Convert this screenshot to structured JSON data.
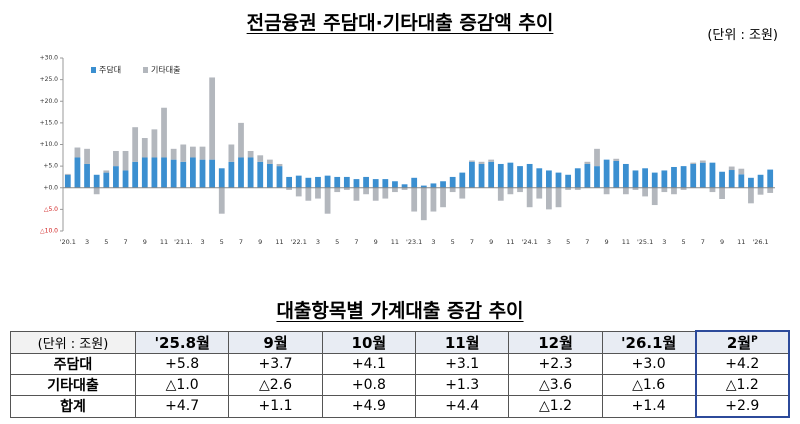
{
  "chart_data": {
    "type": "bar",
    "stacked": true,
    "title": "전금융권 주담대·기타대출 증감액 추이",
    "unit": "(단위 : 조원)",
    "categories": [
      "'20.1",
      null,
      "3",
      null,
      "5",
      null,
      "7",
      null,
      "9",
      null,
      "11",
      null,
      "'21.1.",
      null,
      "3",
      null,
      "5",
      null,
      "7",
      null,
      "9",
      null,
      "11",
      null,
      "'22.1",
      null,
      "3",
      null,
      "5",
      null,
      "7",
      null,
      "9",
      null,
      "11",
      null,
      "'23.1",
      null,
      "3",
      null,
      "5",
      null,
      "7",
      null,
      "9",
      null,
      "11",
      null,
      "'24.1",
      null,
      "3",
      null,
      "5",
      null,
      "7",
      null,
      "9",
      null,
      "11",
      null,
      "'25.1",
      null,
      "3",
      null,
      "5",
      null,
      "7",
      null,
      "9",
      null,
      "11",
      null,
      "'26.1",
      null
    ],
    "series": [
      {
        "name": "주담대",
        "color": "#3b8fd0",
        "values": [
          3.0,
          7.0,
          5.5,
          3.0,
          3.5,
          5.0,
          4.0,
          6.0,
          7.0,
          7.0,
          7.0,
          6.5,
          6.0,
          7.0,
          6.5,
          6.5,
          4.5,
          6.0,
          7.0,
          7.0,
          6.0,
          5.5,
          5.0,
          2.5,
          2.8,
          2.3,
          2.5,
          2.8,
          2.5,
          2.5,
          2.0,
          2.5,
          2.0,
          2.0,
          1.5,
          0.8,
          2.3,
          0.5,
          1.0,
          1.5,
          2.5,
          3.5,
          6.0,
          5.5,
          6.0,
          5.5,
          5.8,
          5.0,
          5.5,
          4.5,
          4.0,
          3.5,
          3.0,
          4.5,
          5.5,
          5.0,
          6.5,
          6.2,
          5.5,
          4.0,
          4.5,
          3.5,
          4.0,
          4.8,
          5.0,
          5.5,
          5.8,
          5.8,
          3.7,
          4.1,
          3.1,
          2.3,
          3.0,
          4.2
        ]
      },
      {
        "name": "기타대출",
        "color": "#b3b7bd",
        "values": [
          0.2,
          2.3,
          3.5,
          -1.5,
          0.5,
          3.5,
          4.5,
          8.0,
          4.5,
          6.5,
          11.5,
          2.5,
          4.0,
          2.5,
          3.0,
          19.0,
          -6.0,
          4.0,
          8.0,
          1.5,
          1.5,
          1.0,
          0.5,
          -0.5,
          -2.0,
          -3.0,
          -2.5,
          -6.0,
          -1.0,
          -0.5,
          -3.0,
          -1.5,
          -3.0,
          -2.5,
          -1.0,
          -0.5,
          -5.5,
          -7.5,
          -5.5,
          -4.5,
          -1.0,
          -2.5,
          0.3,
          0.5,
          0.5,
          -3.0,
          -1.5,
          -1.0,
          -4.5,
          -2.5,
          -5.0,
          -4.5,
          -0.5,
          -0.5,
          0.5,
          4.0,
          -1.5,
          0.5,
          -1.5,
          -0.5,
          -2.0,
          -4.0,
          -1.0,
          -1.5,
          -0.5,
          0.3,
          0.5,
          -1.0,
          -2.6,
          0.8,
          1.3,
          -3.6,
          -1.6,
          -1.2
        ]
      }
    ],
    "ylim": [
      -10,
      30
    ],
    "yticks": [
      {
        "value": 30,
        "label": "+30.0"
      },
      {
        "value": 25,
        "label": "+25.0"
      },
      {
        "value": 20,
        "label": "+20.0"
      },
      {
        "value": 15,
        "label": "+15.0"
      },
      {
        "value": 10,
        "label": "+10.0"
      },
      {
        "value": 5,
        "label": "+5.0"
      },
      {
        "value": 0,
        "label": "+0.0"
      },
      {
        "value": -5,
        "label": "△5.0"
      },
      {
        "value": -10,
        "label": "△10.0"
      }
    ],
    "legend": "top-left"
  },
  "table": {
    "title": "대출항목별 가계대출 증감 추이",
    "header": [
      "(단위 : 조원)",
      "'25.8월",
      "9월",
      "10월",
      "11월",
      "12월",
      "'26.1월",
      "2월"
    ],
    "header_sup": "P",
    "rows": [
      [
        "주담대",
        "+5.8",
        "+3.7",
        "+4.1",
        "+3.1",
        "+2.3",
        "+3.0",
        "+4.2"
      ],
      [
        "기타대출",
        "△1.0",
        "△2.6",
        "+0.8",
        "+1.3",
        "△3.6",
        "△1.6",
        "△1.2"
      ],
      [
        "합계",
        "+4.7",
        "+1.1",
        "+4.9",
        "+4.4",
        "△1.2",
        "+1.4",
        "+2.9"
      ]
    ]
  }
}
